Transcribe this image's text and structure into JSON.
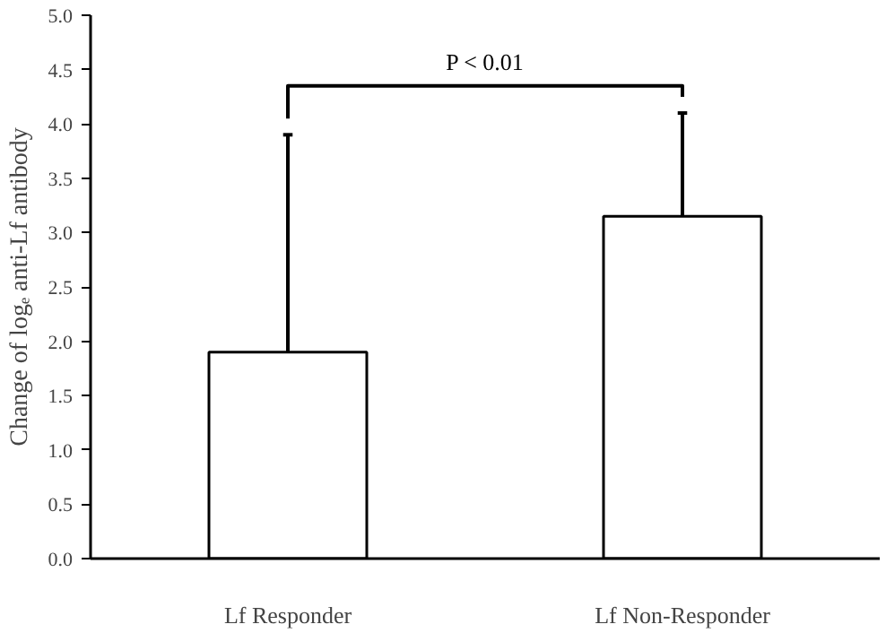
{
  "chart_data": {
    "type": "bar",
    "ylabel": "Change of logₑ anti-Lf antibody",
    "categories": [
      "Lf Responder",
      "Lf Non-Responder"
    ],
    "values": [
      1.9,
      3.15
    ],
    "errors": [
      [
        1.9,
        3.9
      ],
      [
        3.15,
        4.1
      ]
    ],
    "color": "#ffffff",
    "ylim": [
      0,
      5.0
    ],
    "yticks": [
      {
        "value": 0,
        "label": "0.0"
      },
      {
        "value": 0.5,
        "label": "0.5"
      },
      {
        "value": 1,
        "label": "1.0"
      },
      {
        "value": 1.5,
        "label": "1.5"
      },
      {
        "value": 2,
        "label": "2.0"
      },
      {
        "value": 2.5,
        "label": "2.5"
      },
      {
        "value": 3,
        "label": "3.0"
      },
      {
        "value": 3.5,
        "label": "3.5"
      },
      {
        "value": 4,
        "label": "4.0"
      },
      {
        "value": 4.5,
        "label": "4.5"
      },
      {
        "value": 5,
        "label": "5.0"
      }
    ],
    "annotations": [
      "P < 0.01"
    ],
    "grid": false
  }
}
